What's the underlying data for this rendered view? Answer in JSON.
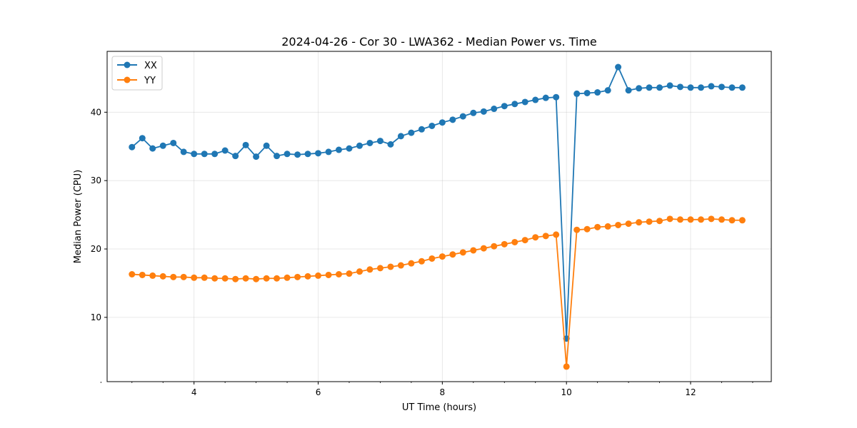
{
  "chart_data": {
    "type": "line",
    "title": "2024-04-26 - Cor 30 - LWA362 - Median Power vs. Time",
    "xlabel": "UT Time (hours)",
    "ylabel": "Median Power (CPU)",
    "xlim": [
      2.6,
      13.3
    ],
    "ylim": [
      0.6,
      48.9
    ],
    "x_ticks": [
      4,
      6,
      8,
      10,
      12
    ],
    "x_tick_labels": [
      "4",
      "6",
      "8",
      "10",
      "12"
    ],
    "y_ticks": [
      10,
      20,
      30,
      40
    ],
    "y_tick_labels": [
      "10",
      "20",
      "30",
      "40"
    ],
    "grid": true,
    "legend_position": "top-left",
    "x": [
      3.0,
      3.167,
      3.333,
      3.5,
      3.667,
      3.833,
      4.0,
      4.167,
      4.333,
      4.5,
      4.667,
      4.833,
      5.0,
      5.167,
      5.333,
      5.5,
      5.667,
      5.833,
      6.0,
      6.167,
      6.333,
      6.5,
      6.667,
      6.833,
      7.0,
      7.167,
      7.333,
      7.5,
      7.667,
      7.833,
      8.0,
      8.167,
      8.333,
      8.5,
      8.667,
      8.833,
      9.0,
      9.167,
      9.333,
      9.5,
      9.667,
      9.833,
      10.0,
      10.167,
      10.333,
      10.5,
      10.667,
      10.833,
      11.0,
      11.167,
      11.333,
      11.5,
      11.667,
      11.833,
      12.0,
      12.167,
      12.333,
      12.5,
      12.667,
      12.833
    ],
    "series": [
      {
        "name": "XX",
        "color": "#1f77b4",
        "values": [
          34.9,
          36.2,
          34.7,
          35.1,
          35.5,
          34.2,
          33.9,
          33.9,
          33.9,
          34.4,
          33.6,
          35.2,
          33.5,
          35.1,
          33.6,
          33.9,
          33.8,
          33.9,
          34.0,
          34.2,
          34.5,
          34.7,
          35.1,
          35.5,
          35.8,
          35.3,
          36.5,
          37.0,
          37.5,
          38.0,
          38.5,
          38.9,
          39.4,
          39.9,
          40.1,
          40.5,
          40.9,
          41.2,
          41.5,
          41.8,
          42.1,
          42.2,
          6.9,
          42.7,
          42.8,
          42.9,
          43.2,
          46.6,
          43.2,
          43.5,
          43.6,
          43.6,
          43.9,
          43.7,
          43.6,
          43.6,
          43.8,
          43.7,
          43.6,
          43.6
        ]
      },
      {
        "name": "YY",
        "color": "#ff7f0e",
        "values": [
          16.3,
          16.2,
          16.1,
          16.0,
          15.9,
          15.9,
          15.8,
          15.8,
          15.7,
          15.7,
          15.6,
          15.7,
          15.6,
          15.7,
          15.7,
          15.8,
          15.9,
          16.0,
          16.1,
          16.2,
          16.3,
          16.4,
          16.7,
          17.0,
          17.2,
          17.4,
          17.6,
          17.9,
          18.2,
          18.6,
          18.9,
          19.2,
          19.5,
          19.8,
          20.1,
          20.4,
          20.7,
          21.0,
          21.3,
          21.7,
          21.9,
          22.1,
          2.8,
          22.8,
          22.9,
          23.2,
          23.3,
          23.5,
          23.7,
          23.9,
          24.0,
          24.1,
          24.4,
          24.3,
          24.3,
          24.3,
          24.4,
          24.3,
          24.2,
          24.2
        ]
      }
    ]
  }
}
